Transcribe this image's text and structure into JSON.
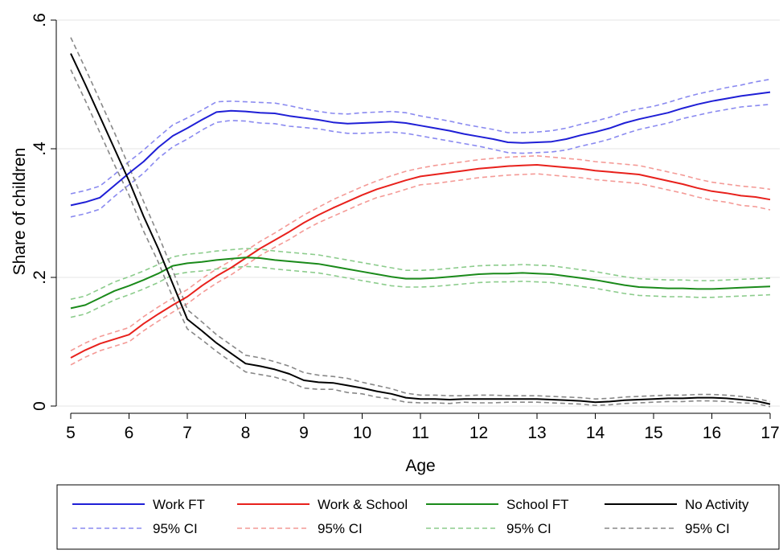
{
  "chart_data": {
    "type": "line",
    "xlabel": "Age",
    "ylabel": "Share of children",
    "xlim": [
      5,
      17
    ],
    "ylim": [
      0,
      0.6
    ],
    "x_ticks": [
      "5",
      "6",
      "7",
      "8",
      "9",
      "10",
      "11",
      "12",
      "13",
      "14",
      "15",
      "16",
      "17"
    ],
    "y_ticks": [
      {
        "value": 0,
        "label": "0"
      },
      {
        "value": 0.2,
        "label": ".2"
      },
      {
        "value": 0.4,
        "label": ".4"
      },
      {
        "value": 0.6,
        "label": ".6"
      }
    ],
    "grid": "horizontal",
    "legend_position": "bottom",
    "x": [
      5,
      5.25,
      5.5,
      5.75,
      6,
      6.25,
      6.5,
      6.75,
      7,
      7.25,
      7.5,
      7.75,
      8,
      8.25,
      8.5,
      8.75,
      9,
      9.25,
      9.5,
      9.75,
      10,
      10.25,
      10.5,
      10.75,
      11,
      11.25,
      11.5,
      11.75,
      12,
      12.25,
      12.5,
      12.75,
      13,
      13.25,
      13.5,
      13.75,
      14,
      14.25,
      14.5,
      14.75,
      15,
      15.25,
      15.5,
      15.75,
      16,
      16.25,
      16.5,
      16.75,
      17
    ],
    "series": [
      {
        "name": "Work FT",
        "color": "#1f1fd6",
        "style": "solid",
        "values": [
          0.312,
          0.317,
          0.324,
          0.343,
          0.362,
          0.38,
          0.402,
          0.42,
          0.432,
          0.445,
          0.457,
          0.459,
          0.458,
          0.456,
          0.455,
          0.451,
          0.448,
          0.445,
          0.441,
          0.439,
          0.44,
          0.441,
          0.442,
          0.44,
          0.436,
          0.432,
          0.428,
          0.423,
          0.419,
          0.415,
          0.41,
          0.409,
          0.41,
          0.411,
          0.415,
          0.421,
          0.426,
          0.432,
          0.44,
          0.446,
          0.451,
          0.456,
          0.463,
          0.469,
          0.474,
          0.478,
          0.482,
          0.485,
          0.488
        ]
      },
      {
        "name": "95% CI",
        "color": "#8a8af0",
        "style": "dashed",
        "values": [
          0.33,
          0.335,
          0.342,
          0.36,
          0.38,
          0.398,
          0.418,
          0.437,
          0.448,
          0.46,
          0.473,
          0.474,
          0.473,
          0.472,
          0.471,
          0.467,
          0.462,
          0.458,
          0.455,
          0.454,
          0.456,
          0.457,
          0.458,
          0.456,
          0.451,
          0.447,
          0.443,
          0.438,
          0.434,
          0.43,
          0.425,
          0.425,
          0.426,
          0.428,
          0.432,
          0.438,
          0.443,
          0.449,
          0.457,
          0.462,
          0.466,
          0.472,
          0.479,
          0.485,
          0.49,
          0.495,
          0.499,
          0.504,
          0.508
        ]
      },
      {
        "name": "95% CI",
        "color": "#8a8af0",
        "style": "dashed",
        "values": [
          0.294,
          0.299,
          0.306,
          0.326,
          0.344,
          0.362,
          0.385,
          0.403,
          0.415,
          0.429,
          0.441,
          0.444,
          0.443,
          0.44,
          0.439,
          0.435,
          0.433,
          0.431,
          0.427,
          0.424,
          0.424,
          0.425,
          0.426,
          0.424,
          0.42,
          0.416,
          0.412,
          0.408,
          0.404,
          0.399,
          0.394,
          0.393,
          0.394,
          0.395,
          0.398,
          0.404,
          0.409,
          0.415,
          0.423,
          0.43,
          0.435,
          0.44,
          0.447,
          0.452,
          0.457,
          0.461,
          0.465,
          0.467,
          0.469
        ]
      },
      {
        "name": "Work & School",
        "color": "#e8211c",
        "style": "solid",
        "values": [
          0.075,
          0.087,
          0.097,
          0.104,
          0.111,
          0.128,
          0.143,
          0.157,
          0.17,
          0.187,
          0.202,
          0.215,
          0.23,
          0.245,
          0.258,
          0.271,
          0.285,
          0.297,
          0.308,
          0.318,
          0.328,
          0.337,
          0.344,
          0.351,
          0.357,
          0.36,
          0.363,
          0.366,
          0.369,
          0.371,
          0.373,
          0.374,
          0.375,
          0.373,
          0.371,
          0.369,
          0.366,
          0.364,
          0.362,
          0.36,
          0.355,
          0.35,
          0.345,
          0.339,
          0.334,
          0.331,
          0.327,
          0.325,
          0.321
        ]
      },
      {
        "name": "95% CI",
        "color": "#f49a96",
        "style": "dashed",
        "values": [
          0.086,
          0.098,
          0.108,
          0.115,
          0.122,
          0.139,
          0.154,
          0.168,
          0.181,
          0.198,
          0.213,
          0.226,
          0.241,
          0.256,
          0.269,
          0.283,
          0.297,
          0.309,
          0.321,
          0.331,
          0.341,
          0.35,
          0.358,
          0.365,
          0.37,
          0.374,
          0.377,
          0.38,
          0.383,
          0.385,
          0.387,
          0.388,
          0.389,
          0.387,
          0.385,
          0.383,
          0.38,
          0.378,
          0.376,
          0.374,
          0.369,
          0.364,
          0.359,
          0.353,
          0.348,
          0.345,
          0.342,
          0.34,
          0.337
        ]
      },
      {
        "name": "95% CI",
        "color": "#f49a96",
        "style": "dashed",
        "values": [
          0.064,
          0.076,
          0.086,
          0.093,
          0.1,
          0.117,
          0.132,
          0.146,
          0.159,
          0.176,
          0.191,
          0.204,
          0.219,
          0.234,
          0.247,
          0.259,
          0.273,
          0.285,
          0.295,
          0.305,
          0.315,
          0.324,
          0.33,
          0.337,
          0.344,
          0.346,
          0.349,
          0.352,
          0.355,
          0.357,
          0.359,
          0.36,
          0.361,
          0.359,
          0.357,
          0.355,
          0.352,
          0.35,
          0.348,
          0.346,
          0.341,
          0.336,
          0.331,
          0.325,
          0.32,
          0.317,
          0.312,
          0.31,
          0.305
        ]
      },
      {
        "name": "School FT",
        "color": "#1a8a1a",
        "style": "solid",
        "values": [
          0.152,
          0.157,
          0.168,
          0.179,
          0.187,
          0.196,
          0.206,
          0.218,
          0.222,
          0.224,
          0.227,
          0.229,
          0.231,
          0.23,
          0.227,
          0.225,
          0.223,
          0.221,
          0.217,
          0.213,
          0.209,
          0.205,
          0.201,
          0.198,
          0.198,
          0.199,
          0.201,
          0.203,
          0.205,
          0.206,
          0.206,
          0.207,
          0.206,
          0.205,
          0.202,
          0.199,
          0.196,
          0.192,
          0.188,
          0.185,
          0.184,
          0.183,
          0.183,
          0.182,
          0.182,
          0.183,
          0.184,
          0.185,
          0.186
        ]
      },
      {
        "name": "95% CI",
        "color": "#8ccc8c",
        "style": "dashed",
        "values": [
          0.166,
          0.171,
          0.182,
          0.193,
          0.201,
          0.21,
          0.22,
          0.232,
          0.236,
          0.238,
          0.241,
          0.243,
          0.245,
          0.244,
          0.241,
          0.239,
          0.237,
          0.235,
          0.231,
          0.227,
          0.223,
          0.219,
          0.215,
          0.211,
          0.211,
          0.212,
          0.214,
          0.216,
          0.218,
          0.219,
          0.219,
          0.22,
          0.219,
          0.218,
          0.215,
          0.212,
          0.209,
          0.205,
          0.201,
          0.198,
          0.197,
          0.196,
          0.196,
          0.195,
          0.195,
          0.196,
          0.197,
          0.198,
          0.199
        ]
      },
      {
        "name": "95% CI",
        "color": "#8ccc8c",
        "style": "dashed",
        "values": [
          0.138,
          0.143,
          0.154,
          0.165,
          0.173,
          0.182,
          0.192,
          0.204,
          0.208,
          0.21,
          0.213,
          0.215,
          0.217,
          0.216,
          0.213,
          0.211,
          0.209,
          0.207,
          0.203,
          0.199,
          0.195,
          0.191,
          0.187,
          0.185,
          0.185,
          0.186,
          0.188,
          0.19,
          0.192,
          0.193,
          0.193,
          0.194,
          0.193,
          0.192,
          0.189,
          0.186,
          0.183,
          0.179,
          0.175,
          0.172,
          0.171,
          0.17,
          0.17,
          0.169,
          0.169,
          0.17,
          0.171,
          0.172,
          0.173
        ]
      },
      {
        "name": "No Activity",
        "color": "#000000",
        "style": "solid",
        "values": [
          0.548,
          0.5,
          0.45,
          0.4,
          0.35,
          0.295,
          0.245,
          0.19,
          0.135,
          0.117,
          0.098,
          0.082,
          0.066,
          0.062,
          0.057,
          0.05,
          0.04,
          0.037,
          0.036,
          0.032,
          0.028,
          0.023,
          0.019,
          0.013,
          0.011,
          0.011,
          0.01,
          0.011,
          0.011,
          0.011,
          0.011,
          0.011,
          0.011,
          0.01,
          0.009,
          0.008,
          0.006,
          0.007,
          0.009,
          0.01,
          0.011,
          0.012,
          0.012,
          0.013,
          0.013,
          0.012,
          0.01,
          0.008,
          0.003
        ]
      },
      {
        "name": "95% CI",
        "color": "#888888",
        "style": "dashed",
        "values": [
          0.573,
          0.525,
          0.475,
          0.425,
          0.372,
          0.318,
          0.266,
          0.211,
          0.15,
          0.131,
          0.111,
          0.095,
          0.079,
          0.075,
          0.069,
          0.062,
          0.052,
          0.048,
          0.046,
          0.043,
          0.037,
          0.032,
          0.027,
          0.02,
          0.017,
          0.017,
          0.016,
          0.016,
          0.017,
          0.017,
          0.016,
          0.016,
          0.016,
          0.015,
          0.014,
          0.013,
          0.011,
          0.012,
          0.014,
          0.015,
          0.016,
          0.017,
          0.017,
          0.018,
          0.018,
          0.017,
          0.015,
          0.012,
          0.007
        ]
      },
      {
        "name": "95% CI",
        "color": "#888888",
        "style": "dashed",
        "values": [
          0.523,
          0.475,
          0.425,
          0.375,
          0.328,
          0.272,
          0.224,
          0.169,
          0.12,
          0.103,
          0.085,
          0.069,
          0.053,
          0.049,
          0.045,
          0.038,
          0.028,
          0.026,
          0.026,
          0.021,
          0.019,
          0.014,
          0.011,
          0.006,
          0.005,
          0.005,
          0.004,
          0.006,
          0.005,
          0.005,
          0.006,
          0.006,
          0.006,
          0.005,
          0.004,
          0.003,
          0.001,
          0.002,
          0.004,
          0.005,
          0.006,
          0.007,
          0.007,
          0.008,
          0.008,
          0.007,
          0.005,
          0.004,
          -0.001
        ]
      }
    ],
    "legend": [
      {
        "label": "Work FT",
        "color": "#1f1fd6",
        "style": "solid"
      },
      {
        "label": "Work & School",
        "color": "#e8211c",
        "style": "solid"
      },
      {
        "label": "School FT",
        "color": "#1a8a1a",
        "style": "solid"
      },
      {
        "label": "No Activity",
        "color": "#000000",
        "style": "solid"
      },
      {
        "label": "95% CI",
        "color": "#8a8af0",
        "style": "dashed"
      },
      {
        "label": "95% CI",
        "color": "#f49a96",
        "style": "dashed"
      },
      {
        "label": "95% CI",
        "color": "#8ccc8c",
        "style": "dashed"
      },
      {
        "label": "95% CI",
        "color": "#888888",
        "style": "dashed"
      }
    ]
  }
}
